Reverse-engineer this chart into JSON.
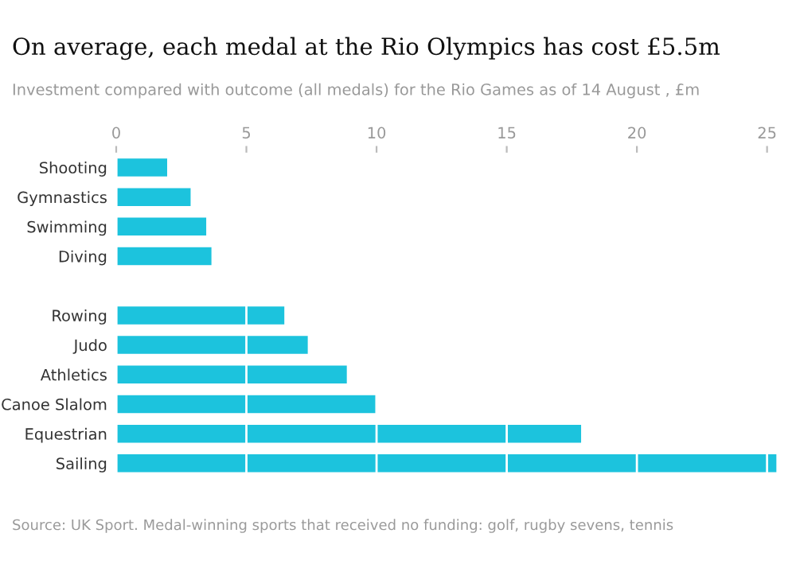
{
  "chart_data": {
    "type": "bar",
    "orientation": "horizontal",
    "title": "On average, each medal at the Rio Olympics has cost £5.5m",
    "subtitle": "Investment compared with outcome (all medals) for the Rio Games as of 14 August , £m",
    "categories": [
      "Shooting",
      "Gymnastics",
      "Swimming",
      "Diving",
      null,
      "Rowing",
      "Judo",
      "Athletics",
      "Canoe Slalom",
      "Equestrian",
      "Sailing"
    ],
    "values": [
      2.0,
      2.9,
      3.5,
      3.7,
      null,
      6.5,
      7.4,
      8.9,
      10.0,
      17.9,
      25.4
    ],
    "color": "#1cc3dd",
    "xlim": [
      0,
      25.5
    ],
    "xticks": [
      0,
      5,
      10,
      15,
      20,
      25
    ],
    "grid": "x",
    "annotations": [
      "Source: UK Sport. Medal-winning sports that received no funding: golf, rugby sevens, tennis"
    ]
  }
}
